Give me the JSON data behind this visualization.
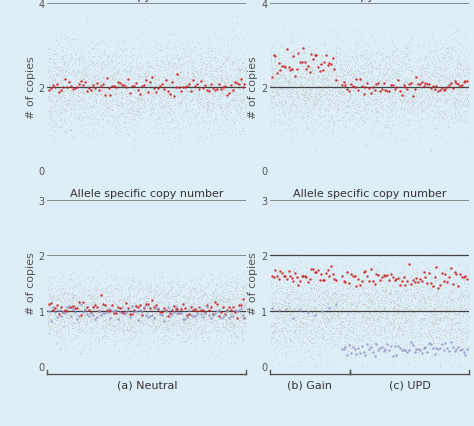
{
  "background_color": "#ddeef6",
  "panel_bg": "#ddeef6",
  "title_top_left": "Total copy number",
  "title_top_right": "Total copy number",
  "title_bot_left": "Allele specific copy number",
  "title_bot_right": "Allele specific copy number",
  "ylabel": "# of copies",
  "label_a": "(a) Neutral",
  "label_b": "(b) Gain",
  "label_c": "(c) UPD",
  "gray_color": "#c8c8c8",
  "red_color": "#cc2222",
  "blue_color": "#9999cc",
  "line_color": "#888888",
  "title_fontsize": 8,
  "label_fontsize": 8,
  "tick_fontsize": 7,
  "n_gray_points": 4000,
  "n_red_points": 100,
  "seed": 42
}
